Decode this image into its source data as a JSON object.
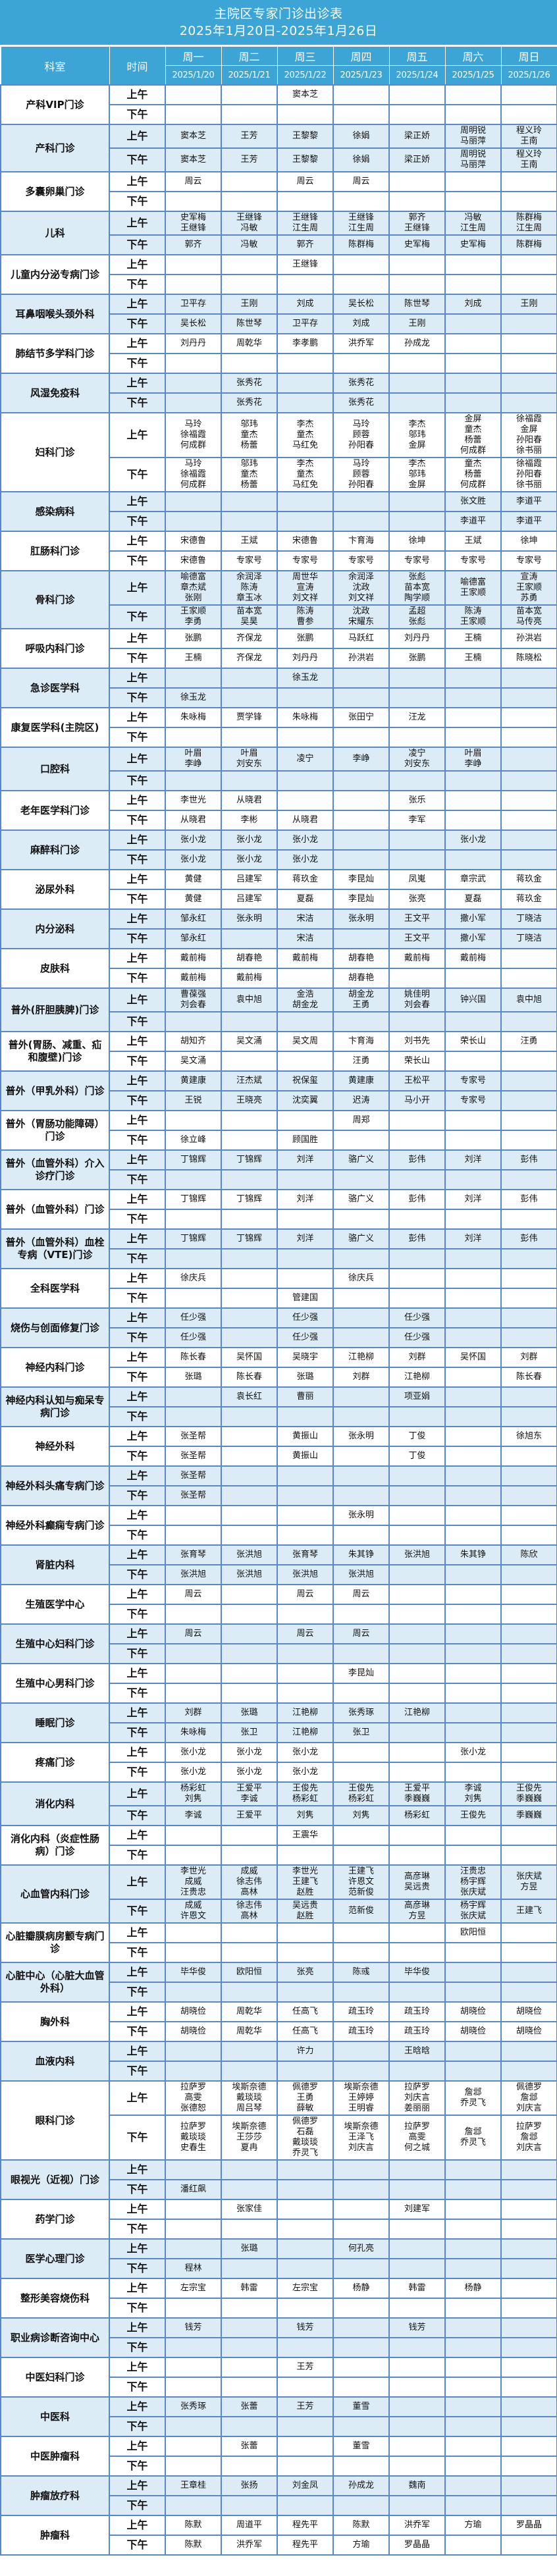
{
  "header": {
    "title": "主院区专家门诊出诊表",
    "date_range": "2025年1月20日-2025年1月26日",
    "col_dept": "科室",
    "col_time": "时间",
    "weekdays": [
      "周一",
      "周二",
      "周三",
      "周四",
      "周五",
      "周六",
      "周日"
    ],
    "dates": [
      "2025/1/20",
      "2025/1/21",
      "2025/1/22",
      "2025/1/23",
      "2025/1/24",
      "2025/1/25",
      "2025/1/26"
    ],
    "am": "上午",
    "pm": "下午"
  },
  "colors": {
    "header_bg": "#3DA5D5",
    "alt_row_bg": "#DCECF6",
    "border": "#5A87C5"
  },
  "departments": [
    {
      "name": "产科VIP门诊",
      "am": [
        "",
        "",
        "窦本芝",
        "",
        "",
        "",
        ""
      ],
      "pm": [
        "",
        "",
        "",
        "",
        "",
        "",
        ""
      ]
    },
    {
      "name": "产科门诊",
      "am": [
        "窦本芝",
        "王芳",
        "王黎黎",
        "徐娟",
        "梁正娇",
        "周明锐\n马丽萍",
        "程义玲\n王南"
      ],
      "pm": [
        "窦本芝",
        "王芳",
        "王黎黎",
        "徐娟",
        "梁正娇",
        "周明锐\n马丽萍",
        "程义玲\n王南"
      ]
    },
    {
      "name": "多囊卵巢门诊",
      "am": [
        "周云",
        "",
        "周云",
        "周云",
        "",
        "",
        ""
      ],
      "pm": [
        "",
        "",
        "",
        "",
        "",
        "",
        ""
      ]
    },
    {
      "name": "儿科",
      "am": [
        "史军梅\n王继锋",
        "王继锋\n冯敏",
        "王继锋\n江生周",
        "王继锋\n江生周",
        "郭齐\n王继锋",
        "冯敏\n江生周",
        "陈群梅\n江生周"
      ],
      "pm": [
        "郭齐",
        "冯敏",
        "郭齐",
        "陈群梅",
        "史军梅",
        "史军梅",
        "陈群梅"
      ]
    },
    {
      "name": "儿童内分泌专病门诊",
      "am": [
        "",
        "",
        "王继锋",
        "",
        "",
        "",
        ""
      ],
      "pm": [
        "",
        "",
        "",
        "",
        "",
        "",
        ""
      ]
    },
    {
      "name": "耳鼻咽喉头颈外科",
      "am": [
        "卫平存",
        "王刚",
        "刘成",
        "吴长松",
        "陈世琴",
        "刘成",
        "王刚"
      ],
      "pm": [
        "吴长松",
        "陈世琴",
        "卫平存",
        "刘成",
        "王刚",
        "",
        ""
      ]
    },
    {
      "name": "肺结节多学科门诊",
      "am": [
        "刘丹丹",
        "周乾华",
        "李孝鹏",
        "洪乔军",
        "孙成龙",
        "",
        ""
      ],
      "pm": [
        "",
        "",
        "",
        "",
        "",
        "",
        ""
      ]
    },
    {
      "name": "风湿免疫科",
      "am": [
        "",
        "张秀花",
        "",
        "张秀花",
        "",
        "",
        ""
      ],
      "pm": [
        "",
        "张秀花",
        "",
        "张秀花",
        "",
        "",
        ""
      ]
    },
    {
      "name": "妇科门诊",
      "am": [
        "马玲\n徐福霞\n何成群",
        "邬玮\n童杰\n杨蕾",
        "李杰\n童杰\n马红免",
        "马玲\n顾蓉\n孙阳春",
        "李杰\n邬玮\n金屏",
        "金屏\n童杰\n杨蕾\n何成群",
        "徐福霞\n金屏\n孙阳春\n徐书丽"
      ],
      "pm": [
        "马玲\n徐福霞\n何成群",
        "邬玮\n童杰\n杨蕾",
        "李杰\n童杰\n马红免",
        "马玲\n顾蓉\n孙阳春",
        "李杰\n邬玮\n金屏",
        "童杰\n杨蕾\n何成群",
        "徐福霞\n孙阳春\n徐书丽"
      ]
    },
    {
      "name": "感染病科",
      "am": [
        "",
        "",
        "",
        "",
        "",
        "张文胜",
        "李道平"
      ],
      "pm": [
        "",
        "",
        "",
        "",
        "",
        "李道平",
        "李道平"
      ]
    },
    {
      "name": "肛肠科门诊",
      "am": [
        "宋德鲁",
        "王斌",
        "宋德鲁",
        "卞育海",
        "徐坤",
        "王斌",
        "徐坤"
      ],
      "pm": [
        "宋德鲁",
        "专家号",
        "专家号",
        "专家号",
        "专家号",
        "专家号",
        "专家号"
      ]
    },
    {
      "name": "骨科门诊",
      "am": [
        "喻德富\n章杰斌\n张刚",
        "余润泽\n陈涛\n章玉冰",
        "周世华\n宣涛\n刘文祥",
        "余润泽\n沈政\n刘文祥",
        "张彪\n苗本宽\n陶学顺",
        "喻德富\n王家顺",
        "宣涛\n王家顺\n苏勇"
      ],
      "pm": [
        "王家顺\n李勇",
        "苗本宽\n吴昊",
        "陈涛\n曹参",
        "沈政\n宋耀东",
        "孟超\n张彪",
        "陈涛\n王家顺",
        "苗本宽\n马传亮"
      ]
    },
    {
      "name": "呼吸内科门诊",
      "am": [
        "张鹏",
        "齐保龙",
        "张鹏",
        "马跃红",
        "刘丹丹",
        "王楠",
        "孙洪岩"
      ],
      "pm": [
        "王楠",
        "齐保龙",
        "刘丹丹",
        "孙洪岩",
        "张鹏",
        "王楠",
        "陈晓松"
      ]
    },
    {
      "name": "急诊医学科",
      "am": [
        "",
        "",
        "徐玉龙",
        "",
        "",
        "",
        ""
      ],
      "pm": [
        "徐玉龙",
        "",
        "",
        "",
        "",
        "",
        ""
      ]
    },
    {
      "name": "康复医学科(主院区)",
      "am": [
        "朱咏梅",
        "贾学锋",
        "朱咏梅",
        "张田宁",
        "汪龙",
        "",
        ""
      ],
      "pm": [
        "",
        "",
        "",
        "",
        "",
        "",
        ""
      ]
    },
    {
      "name": "口腔科",
      "am": [
        "叶眉\n李峥",
        "叶眉\n刘安东",
        "凌宁",
        "李峥",
        "凌宁\n刘安东",
        "叶眉\n李峥",
        ""
      ],
      "pm": [
        "",
        "",
        "",
        "",
        "",
        "",
        ""
      ]
    },
    {
      "name": "老年医学科门诊",
      "am": [
        "李世光",
        "从晓君",
        "",
        "",
        "张乐",
        "",
        ""
      ],
      "pm": [
        "从晓君",
        "李彬",
        "从晓君",
        "",
        "李军",
        "",
        ""
      ]
    },
    {
      "name": "麻醉科门诊",
      "am": [
        "张小龙",
        "张小龙",
        "张小龙",
        "",
        "",
        "张小龙",
        ""
      ],
      "pm": [
        "张小龙",
        "张小龙",
        "张小龙",
        "",
        "",
        "",
        ""
      ]
    },
    {
      "name": "泌尿外科",
      "am": [
        "黄健",
        "吕建军",
        "蒋玖金",
        "李昆灿",
        "凤嵬",
        "章宗武",
        "蒋玖金"
      ],
      "pm": [
        "黄健",
        "吕建军",
        "夏磊",
        "李昆灿",
        "张亮",
        "夏磊",
        "蒋玖金"
      ]
    },
    {
      "name": "内分泌科",
      "am": [
        "邹永红",
        "张永明",
        "宋洁",
        "张永明",
        "王文平",
        "撒小军",
        "丁晓洁"
      ],
      "pm": [
        "邹永红",
        "",
        "宋洁",
        "",
        "王文平",
        "撒小军",
        "丁晓洁"
      ]
    },
    {
      "name": "皮肤科",
      "am": [
        "戴前梅",
        "胡春艳",
        "戴前梅",
        "胡春艳",
        "戴前梅",
        "戴前梅",
        ""
      ],
      "pm": [
        "戴前梅",
        "戴前梅",
        "",
        "胡春艳",
        "",
        "",
        ""
      ]
    },
    {
      "name": "普外(肝胆胰脾)门诊",
      "am": [
        "曹葆强\n刘会春",
        "袁中旭",
        "金浩\n胡金龙",
        "胡金龙\n王勇",
        "姚佳明\n刘会春",
        "钟兴国",
        "袁中旭"
      ],
      "pm": [
        "",
        "",
        "",
        "",
        "",
        "",
        ""
      ]
    },
    {
      "name": "普外(胃肠、减重、疝和腹壁)门诊",
      "am": [
        "胡知齐",
        "吴文涌",
        "吴文周",
        "卞育海",
        "刘书先",
        "荣长山",
        "汪勇"
      ],
      "pm": [
        "吴文涌",
        "",
        "",
        "汪勇",
        "荣长山",
        "",
        ""
      ]
    },
    {
      "name": "普外（甲乳外科）门诊",
      "am": [
        "黄建康",
        "汪杰斌",
        "祝保玺",
        "黄建康",
        "王松平",
        "专家号",
        ""
      ],
      "pm": [
        "王锐",
        "王晓亮",
        "沈奕翼",
        "迟涛",
        "马小开",
        "专家号",
        ""
      ]
    },
    {
      "name": "普外（胃肠功能障碍）门诊",
      "am": [
        "",
        "",
        "",
        "周郑",
        "",
        "",
        ""
      ],
      "pm": [
        "徐立峰",
        "",
        "顾国胜",
        "",
        "",
        "",
        ""
      ]
    },
    {
      "name": "普外（血管外科）介入诊疗门诊",
      "am": [
        "丁锦辉",
        "丁锦辉",
        "刘洋",
        "骆广义",
        "彭伟",
        "刘洋",
        "彭伟"
      ],
      "pm": [
        "",
        "",
        "",
        "",
        "",
        "",
        ""
      ]
    },
    {
      "name": "普外（血管外科）门诊",
      "am": [
        "丁锦辉",
        "丁锦辉",
        "刘洋",
        "骆广义",
        "彭伟",
        "刘洋",
        "彭伟"
      ],
      "pm": [
        "",
        "",
        "",
        "",
        "",
        "",
        ""
      ]
    },
    {
      "name": "普外（血管外科）血栓专病（VTE)门诊",
      "am": [
        "丁锦辉",
        "丁锦辉",
        "刘洋",
        "骆广义",
        "彭伟",
        "刘洋",
        "彭伟"
      ],
      "pm": [
        "",
        "",
        "",
        "",
        "",
        "",
        ""
      ]
    },
    {
      "name": "全科医学科",
      "am": [
        "徐庆兵",
        "",
        "",
        "徐庆兵",
        "",
        "",
        ""
      ],
      "pm": [
        "",
        "",
        "管建国",
        "",
        "",
        "",
        ""
      ]
    },
    {
      "name": "烧伤与创面修复门诊",
      "am": [
        "任少强",
        "",
        "任少强",
        "",
        "任少强",
        "",
        ""
      ],
      "pm": [
        "任少强",
        "",
        "任少强",
        "",
        "任少强",
        "",
        ""
      ]
    },
    {
      "name": "神经内科门诊",
      "am": [
        "陈长春",
        "吴怀国",
        "吴晓宇",
        "江艳柳",
        "刘群",
        "吴怀国",
        "刘群"
      ],
      "pm": [
        "张璐",
        "陈长春",
        "张璐",
        "刘群",
        "江艳柳",
        "",
        "陈长春"
      ]
    },
    {
      "name": "神经内科认知与痴呆专病门诊",
      "am": [
        "",
        "袁长红",
        "曹丽",
        "",
        "项亚娟",
        "",
        ""
      ],
      "pm": [
        "",
        "",
        "",
        "",
        "",
        "",
        ""
      ]
    },
    {
      "name": "神经外科",
      "am": [
        "张圣帮",
        "",
        "黄振山",
        "张永明",
        "丁俊",
        "",
        "徐旭东"
      ],
      "pm": [
        "张圣帮",
        "",
        "黄振山",
        "",
        "丁俊",
        "",
        ""
      ]
    },
    {
      "name": "神经外科头痛专病门诊",
      "am": [
        "张圣帮",
        "",
        "",
        "",
        "",
        "",
        ""
      ],
      "pm": [
        "张圣帮",
        "",
        "",
        "",
        "",
        "",
        ""
      ]
    },
    {
      "name": "神经外科癫痫专病门诊",
      "am": [
        "",
        "",
        "",
        "张永明",
        "",
        "",
        ""
      ],
      "pm": [
        "",
        "",
        "",
        "",
        "",
        "",
        ""
      ]
    },
    {
      "name": "肾脏内科",
      "am": [
        "张育琴",
        "张洪旭",
        "张育琴",
        "朱其铮",
        "张洪旭",
        "朱其铮",
        "陈欣"
      ],
      "pm": [
        "张洪旭",
        "张洪旭",
        "张洪旭",
        "张洪旭",
        "",
        "",
        ""
      ]
    },
    {
      "name": "生殖医学中心",
      "am": [
        "周云",
        "",
        "周云",
        "周云",
        "",
        "",
        ""
      ],
      "pm": [
        "",
        "",
        "",
        "",
        "",
        "",
        ""
      ]
    },
    {
      "name": "生殖中心妇科门诊",
      "am": [
        "周云",
        "",
        "周云",
        "周云",
        "",
        "",
        ""
      ],
      "pm": [
        "",
        "",
        "",
        "",
        "",
        "",
        ""
      ]
    },
    {
      "name": "生殖中心男科门诊",
      "am": [
        "",
        "",
        "",
        "李昆灿",
        "",
        "",
        ""
      ],
      "pm": [
        "",
        "",
        "",
        "",
        "",
        "",
        ""
      ]
    },
    {
      "name": "睡眠门诊",
      "am": [
        "刘群",
        "张璐",
        "江艳柳",
        "张秀琢",
        "江艳柳",
        "",
        ""
      ],
      "pm": [
        "朱咏梅",
        "张卫",
        "江艳柳",
        "张卫",
        "",
        "",
        ""
      ]
    },
    {
      "name": "疼痛门诊",
      "am": [
        "张小龙",
        "张小龙",
        "张小龙",
        "",
        "",
        "张小龙",
        ""
      ],
      "pm": [
        "张小龙",
        "张小龙",
        "张小龙",
        "",
        "",
        "",
        ""
      ]
    },
    {
      "name": "消化内科",
      "am": [
        "杨彩虹\n刘隽",
        "王爱平\n李诚",
        "王俊先\n杨彩虹",
        "王俊先\n杨彩虹",
        "王爱平\n季巍巍",
        "李诚\n刘隽",
        "王俊先\n季巍巍"
      ],
      "pm": [
        "李诚",
        "王爱平",
        "刘隽",
        "刘隽",
        "杨彩虹",
        "王俊先",
        "季巍巍"
      ]
    },
    {
      "name": "消化内科（炎症性肠病）门诊",
      "am": [
        "",
        "",
        "王震华",
        "",
        "",
        "",
        ""
      ],
      "pm": [
        "",
        "",
        "",
        "",
        "",
        "",
        ""
      ]
    },
    {
      "name": "心血管内科门诊",
      "am": [
        "李世光\n成威\n汪贵忠",
        "成威\n徐志伟\n高林",
        "李世光\n王建飞\n赵胜",
        "王建飞\n许恩文\n范新俊",
        "高彦琳\n吴远贵",
        "汪贵忠\n杨宇辉\n张庆斌",
        "张庆斌\n方昱"
      ],
      "pm": [
        "成威\n许恩文",
        "徐志伟\n高林",
        "吴远贵\n赵胜",
        "范新俊",
        "高彦琳\n方昱",
        "杨宇辉\n张庆斌",
        "王建飞"
      ]
    },
    {
      "name": "心脏瓣膜病房颤专病门诊",
      "am": [
        "",
        "",
        "",
        "",
        "",
        "欧阳恒",
        ""
      ],
      "pm": [
        "",
        "",
        "",
        "",
        "",
        "",
        ""
      ]
    },
    {
      "name": "心脏中心（心脏大血管外科）",
      "am": [
        "毕华俊",
        "欧阳恒",
        "张亮",
        "陈彧",
        "毕华俊",
        "",
        ""
      ],
      "pm": [
        "",
        "",
        "",
        "",
        "",
        "",
        ""
      ]
    },
    {
      "name": "胸外科",
      "am": [
        "胡晓俭",
        "周乾华",
        "任高飞",
        "疏玉玲",
        "疏玉玲",
        "胡晓俭",
        "胡晓俭"
      ],
      "pm": [
        "胡晓俭",
        "周乾华",
        "任高飞",
        "疏玉玲",
        "疏玉玲",
        "胡晓俭",
        "胡晓俭"
      ]
    },
    {
      "name": "血液内科",
      "am": [
        "",
        "",
        "许力",
        "",
        "王晗晗",
        "",
        ""
      ],
      "pm": [
        "",
        "",
        "",
        "",
        "",
        "",
        ""
      ]
    },
    {
      "name": "眼科门诊",
      "am": [
        "拉萨罗\n高雯\n张德恕",
        "埃斯奈德\n戴琰琰\n周吕琴",
        "佩德罗\n王勇\n薛敏",
        "埃斯奈德\n王婷婷\n王明睿",
        "拉萨罗\n刘庆言\n姜丽丽",
        "詹邶\n乔灵飞",
        "佩德罗\n詹邶\n刘庆言"
      ],
      "pm": [
        "拉萨罗\n戴琰琰\n史春生",
        "埃斯奈德\n王莎莎\n夏冉",
        "佩德罗\n石磊\n戴琰琰\n乔灵飞",
        "埃斯奈德\n王泽飞\n刘庆言",
        "拉萨罗\n高雯\n何之城",
        "詹邶\n乔灵飞",
        "拉萨罗\n詹邶\n刘庆言"
      ]
    },
    {
      "name": "眼视光（近视）门诊",
      "am": [
        "",
        "",
        "",
        "",
        "",
        "",
        ""
      ],
      "pm": [
        "潘红飙",
        "",
        "",
        "",
        "",
        "",
        ""
      ]
    },
    {
      "name": "药学门诊",
      "am": [
        "",
        "张家佳",
        "",
        "",
        "刘建军",
        "",
        ""
      ],
      "pm": [
        "",
        "",
        "",
        "",
        "",
        "",
        ""
      ]
    },
    {
      "name": "医学心理门诊",
      "am": [
        "",
        "张璐",
        "",
        "何孔亮",
        "",
        "",
        ""
      ],
      "pm": [
        "程林",
        "",
        "",
        "",
        "",
        "",
        ""
      ]
    },
    {
      "name": "整形美容烧伤科",
      "am": [
        "左宗宝",
        "韩雷",
        "左宗宝",
        "杨静",
        "韩雷",
        "杨静",
        ""
      ],
      "pm": [
        "",
        "",
        "",
        "",
        "",
        "",
        ""
      ]
    },
    {
      "name": "职业病诊断咨询中心",
      "am": [
        "钱芳",
        "",
        "钱芳",
        "",
        "钱芳",
        "",
        ""
      ],
      "pm": [
        "",
        "",
        "",
        "",
        "",
        "",
        ""
      ]
    },
    {
      "name": "中医妇科门诊",
      "am": [
        "",
        "",
        "王芳",
        "",
        "",
        "",
        ""
      ],
      "pm": [
        "",
        "",
        "",
        "",
        "",
        "",
        ""
      ]
    },
    {
      "name": "中医科",
      "am": [
        "张秀琢",
        "张蕾",
        "王芳",
        "董雪",
        "",
        "",
        ""
      ],
      "pm": [
        "",
        "",
        "",
        "",
        "",
        "",
        ""
      ]
    },
    {
      "name": "中医肿瘤科",
      "am": [
        "",
        "张蕾",
        "",
        "董雪",
        "",
        "",
        ""
      ],
      "pm": [
        "",
        "",
        "",
        "",
        "",
        "",
        ""
      ]
    },
    {
      "name": "肿瘤放疗科",
      "am": [
        "王章桂",
        "张扬",
        "刘金凤",
        "孙成龙",
        "魏南",
        "",
        ""
      ],
      "pm": [
        "",
        "",
        "",
        "",
        "",
        "",
        ""
      ]
    },
    {
      "name": "肿瘤科",
      "am": [
        "陈默",
        "周道平",
        "程先平",
        "陈默",
        "洪乔军",
        "方瑜",
        "罗晶晶"
      ],
      "pm": [
        "陈默",
        "洪乔军",
        "程先平",
        "方瑜",
        "罗晶晶",
        "",
        ""
      ]
    }
  ]
}
